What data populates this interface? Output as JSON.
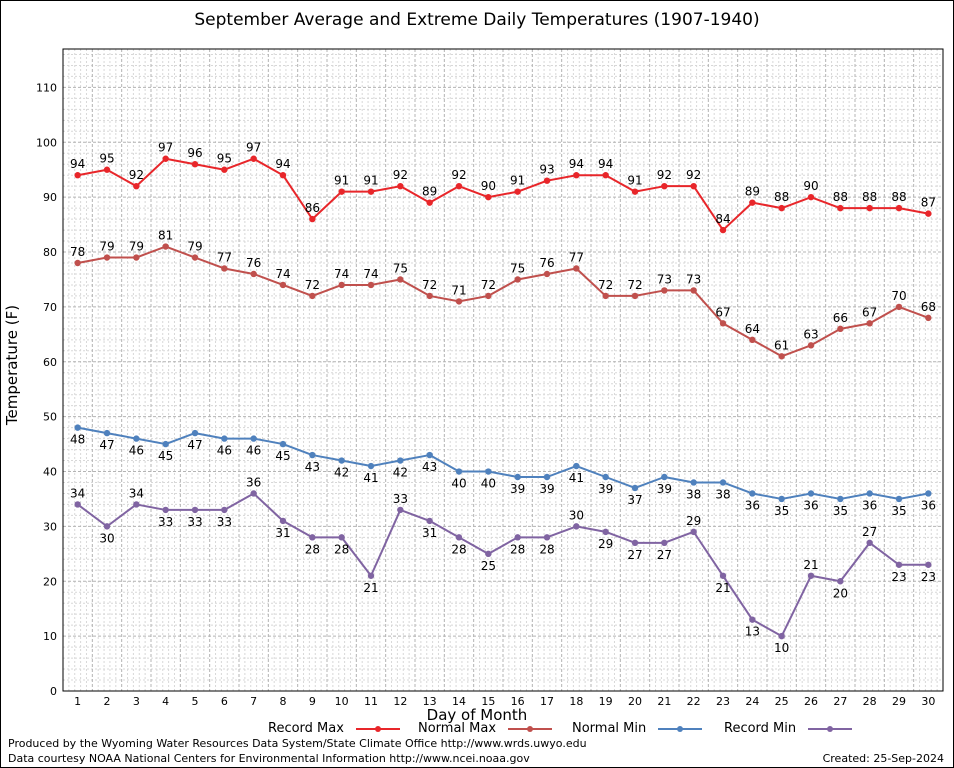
{
  "title": "September Average and Extreme Daily Temperatures (1907-1940)",
  "footer": {
    "producer": "Produced by the Wyoming Water Resources Data System/State Climate Office http://www.wrds.uwyo.edu",
    "source": "Data courtesy NOAA National Centers for Environmental Information http://www.ncei.noaa.gov",
    "created": "Created:  25-Sep-2024"
  },
  "colors": {
    "record_max": "#e8262a",
    "normal_max": "#c0504d",
    "normal_min": "#4f81bd",
    "record_min": "#8064a2",
    "grid_major": "#b4b4b4",
    "grid_minor": "#d8d8d8"
  },
  "chart_data": {
    "type": "line",
    "xlabel": "Day of Month",
    "ylabel": "Temperature (F)",
    "xlim": [
      0.5,
      30.5
    ],
    "ylim": [
      0,
      117
    ],
    "yticks": [
      0,
      10,
      20,
      30,
      40,
      50,
      60,
      70,
      80,
      90,
      100,
      110
    ],
    "grid": true,
    "legend_position": "bottom",
    "x": [
      1,
      2,
      3,
      4,
      5,
      6,
      7,
      8,
      9,
      10,
      11,
      12,
      13,
      14,
      15,
      16,
      17,
      18,
      19,
      20,
      21,
      22,
      23,
      24,
      25,
      26,
      27,
      28,
      29,
      30
    ],
    "series": [
      {
        "name": "Record Max",
        "color": "#e8262a",
        "values": [
          94,
          95,
          92,
          97,
          96,
          95,
          97,
          94,
          86,
          91,
          91,
          92,
          89,
          92,
          90,
          91,
          93,
          94,
          94,
          91,
          92,
          92,
          84,
          89,
          88,
          90,
          88,
          88,
          88,
          87
        ]
      },
      {
        "name": "Normal Max",
        "color": "#c0504d",
        "values": [
          78,
          79,
          79,
          81,
          79,
          77,
          76,
          74,
          72,
          74,
          74,
          75,
          72,
          71,
          72,
          75,
          76,
          77,
          72,
          72,
          73,
          73,
          67,
          64,
          61,
          63,
          66,
          67,
          70,
          68
        ]
      },
      {
        "name": "Normal Min",
        "color": "#4f81bd",
        "values": [
          48,
          47,
          46,
          45,
          47,
          46,
          46,
          45,
          43,
          42,
          41,
          42,
          43,
          40,
          40,
          39,
          39,
          41,
          39,
          37,
          39,
          38,
          38,
          36,
          35,
          36,
          35,
          36,
          35,
          36
        ]
      },
      {
        "name": "Record Min",
        "color": "#8064a2",
        "values": [
          34,
          30,
          34,
          33,
          33,
          33,
          36,
          31,
          28,
          28,
          21,
          33,
          31,
          28,
          25,
          28,
          28,
          30,
          29,
          27,
          27,
          29,
          21,
          13,
          10,
          21,
          20,
          27,
          23,
          23
        ]
      }
    ]
  }
}
